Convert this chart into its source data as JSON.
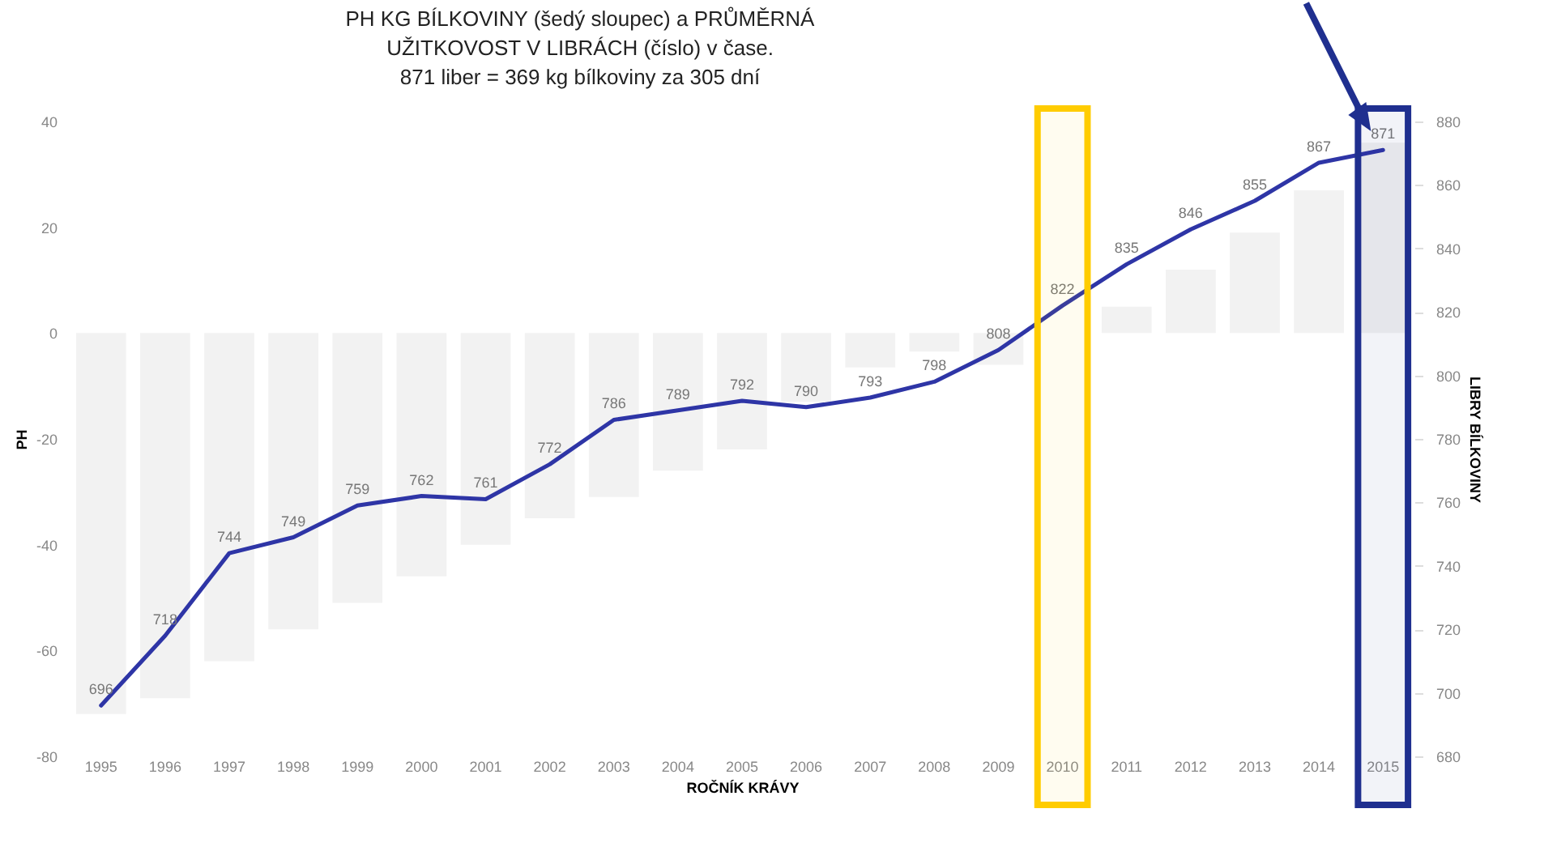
{
  "chart_data": {
    "type": "bar",
    "title": "PH KG BÍLKOVINY (šedý sloupec) a PRŮMĚRNÁ\nUŽITKOVOST V LIBRÁCH (číslo) v čase.\n871 liber = 369 kg bílkoviny za 305 dní",
    "xlabel": "ROČNÍK KRÁVY",
    "ylabel": "PH",
    "y2label": "LIBRY BÍLKOVINY",
    "categories": [
      "1995",
      "1996",
      "1997",
      "1998",
      "1999",
      "2000",
      "2001",
      "2002",
      "2003",
      "2004",
      "2005",
      "2006",
      "2007",
      "2008",
      "2009",
      "2010",
      "2011",
      "2012",
      "2013",
      "2014",
      "2015"
    ],
    "series": [
      {
        "color": "#f2f2f2",
        "values": [
          -72,
          -69,
          -62,
          -56,
          -51,
          -46,
          -40,
          -35,
          -31,
          -26,
          -22,
          -13,
          -6.5,
          -3.5,
          -6,
          null,
          5,
          12,
          19,
          27,
          36
        ]
      },
      {
        "type": "line",
        "axis": "y2",
        "color": "#2e35a6",
        "values": [
          696,
          718,
          744,
          749,
          759,
          762,
          761,
          772,
          786,
          789,
          792,
          790,
          793,
          798,
          808,
          822,
          835,
          846,
          855,
          867,
          871
        ],
        "value_labels": [
          "696",
          "718",
          "744",
          "749",
          "759",
          "762",
          "761",
          "772",
          "786",
          "789",
          "792",
          "790",
          "793",
          "798",
          "808",
          "822",
          "835",
          "846",
          "855",
          "867",
          "871"
        ]
      }
    ],
    "ylim": [
      -80,
      40
    ],
    "yticks": [
      -80,
      -60,
      -40,
      -20,
      0,
      20,
      40
    ],
    "y2lim": [
      680,
      880
    ],
    "y2ticks": [
      680,
      700,
      720,
      740,
      760,
      780,
      800,
      820,
      840,
      860,
      880
    ],
    "bands": [
      {
        "axis": "x",
        "from": "2010",
        "to": "2010",
        "color": "#ffcc00"
      },
      {
        "axis": "x",
        "from": "2015",
        "to": "2015",
        "color": "#1f2f8f"
      }
    ],
    "grid": false
  }
}
